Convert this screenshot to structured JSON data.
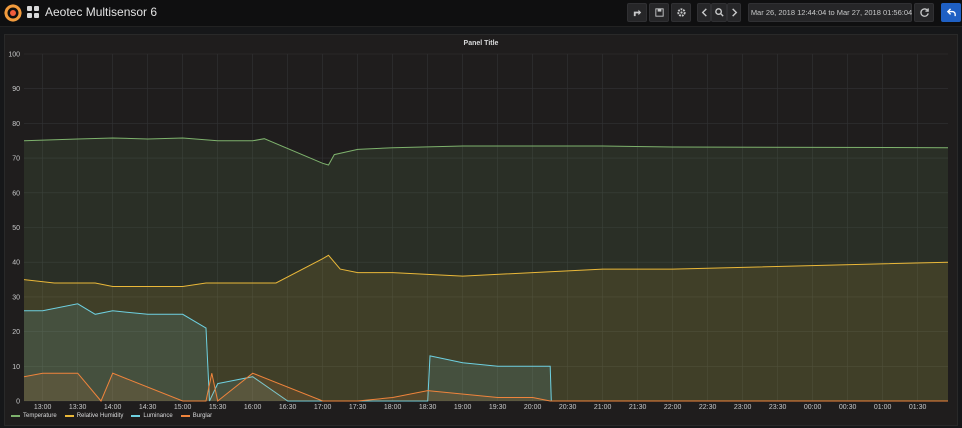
{
  "header": {
    "dashboard_title": "Aeotec Multisensor 6",
    "time_range": "Mar 26, 2018 12:44:04 to Mar 27, 2018 01:56:04",
    "icons": [
      "grafana-logo-icon",
      "dashboards-grid-icon",
      "share-icon",
      "save-icon",
      "settings-gear-icon",
      "time-back-icon",
      "zoom-out-icon",
      "time-forward-icon",
      "clock-icon",
      "refresh-icon",
      "back-arrow-icon"
    ]
  },
  "panel": {
    "title": "Panel Title"
  },
  "colors": {
    "Temperature": "#7eb26d",
    "Relative Humidity": "#eab839",
    "Luminance": "#6ed0e0",
    "Burglar": "#ef843c"
  },
  "chart_data": {
    "type": "area",
    "title": "Panel Title",
    "ylim": [
      0,
      100
    ],
    "yticks": [
      0,
      10,
      20,
      30,
      40,
      50,
      60,
      70,
      80,
      90,
      100
    ],
    "xlim": [
      "12:44",
      "01:56"
    ],
    "xticks": [
      "13:00",
      "13:30",
      "14:00",
      "14:30",
      "15:00",
      "15:30",
      "16:00",
      "16:30",
      "17:00",
      "17:30",
      "18:00",
      "18:30",
      "19:00",
      "19:30",
      "20:00",
      "20:30",
      "21:00",
      "21:30",
      "22:00",
      "22:30",
      "23:00",
      "23:30",
      "00:00",
      "00:30",
      "01:00",
      "01:30"
    ],
    "grid": true,
    "legend_position": "bottom-left",
    "series": [
      {
        "name": "Temperature",
        "points": [
          [
            "12:44",
            75
          ],
          [
            "13:30",
            75.5
          ],
          [
            "14:00",
            75.8
          ],
          [
            "14:30",
            75.5
          ],
          [
            "15:00",
            75.8
          ],
          [
            "15:30",
            75
          ],
          [
            "16:00",
            75
          ],
          [
            "16:10",
            75.6
          ],
          [
            "17:00",
            68.5
          ],
          [
            "17:05",
            68
          ],
          [
            "17:10",
            71
          ],
          [
            "17:30",
            72.5
          ],
          [
            "18:00",
            73
          ],
          [
            "19:00",
            73.5
          ],
          [
            "20:00",
            73.5
          ],
          [
            "21:00",
            73.5
          ],
          [
            "22:00",
            73.2
          ],
          [
            "01:56",
            73
          ]
        ]
      },
      {
        "name": "Relative Humidity",
        "points": [
          [
            "12:44",
            35
          ],
          [
            "13:10",
            34
          ],
          [
            "13:45",
            34
          ],
          [
            "14:00",
            33
          ],
          [
            "15:00",
            33
          ],
          [
            "15:20",
            34
          ],
          [
            "16:00",
            34
          ],
          [
            "16:20",
            34
          ],
          [
            "17:00",
            41
          ],
          [
            "17:05",
            42
          ],
          [
            "17:15",
            38
          ],
          [
            "17:30",
            37
          ],
          [
            "18:00",
            37
          ],
          [
            "19:00",
            36
          ],
          [
            "20:00",
            37
          ],
          [
            "21:00",
            38
          ],
          [
            "22:00",
            38
          ],
          [
            "01:56",
            40
          ]
        ]
      },
      {
        "name": "Luminance",
        "points": [
          [
            "12:44",
            26
          ],
          [
            "13:00",
            26
          ],
          [
            "13:30",
            28
          ],
          [
            "13:45",
            25
          ],
          [
            "14:00",
            26
          ],
          [
            "14:30",
            25
          ],
          [
            "15:00",
            25
          ],
          [
            "15:20",
            21
          ],
          [
            "15:23",
            0
          ],
          [
            "15:30",
            5
          ],
          [
            "16:00",
            7
          ],
          [
            "16:30",
            0
          ],
          [
            "17:00",
            0
          ],
          [
            "18:30",
            0
          ],
          [
            "18:32",
            13
          ],
          [
            "19:00",
            11
          ],
          [
            "19:30",
            10
          ],
          [
            "20:00",
            10
          ],
          [
            "20:15",
            10
          ],
          [
            "20:16",
            0
          ],
          [
            "01:56",
            0
          ]
        ]
      },
      {
        "name": "Burglar",
        "points": [
          [
            "12:44",
            7
          ],
          [
            "13:00",
            8
          ],
          [
            "13:30",
            8
          ],
          [
            "13:50",
            0
          ],
          [
            "14:00",
            8
          ],
          [
            "15:00",
            0
          ],
          [
            "15:20",
            0
          ],
          [
            "15:25",
            8
          ],
          [
            "15:30",
            0
          ],
          [
            "16:00",
            8
          ],
          [
            "17:00",
            0
          ],
          [
            "17:30",
            0
          ],
          [
            "18:00",
            1
          ],
          [
            "18:30",
            3
          ],
          [
            "19:30",
            1
          ],
          [
            "20:00",
            1
          ],
          [
            "20:15",
            0
          ],
          [
            "01:56",
            0
          ]
        ]
      }
    ]
  }
}
